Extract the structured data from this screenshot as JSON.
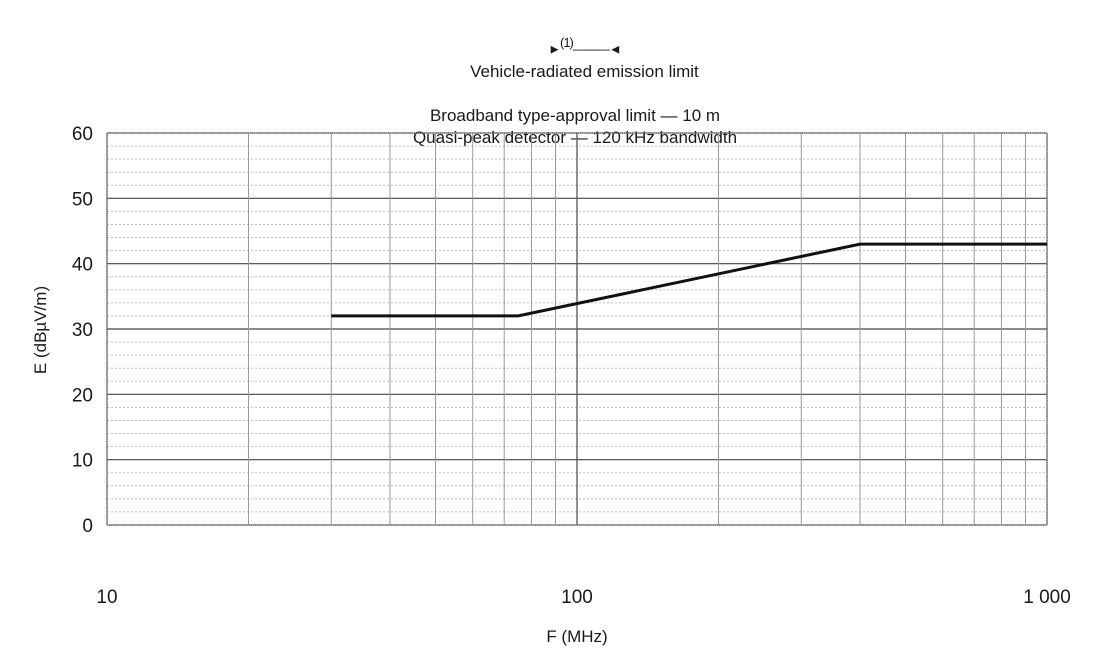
{
  "legend": {
    "marker_left": "►",
    "marker_sup": "(1)",
    "marker_right": "———◄",
    "text": "Vehicle-radiated emission limit"
  },
  "title_lines": [
    "Broadband type-approval limit — 10 m",
    "Quasi-peak detector — 120 kHz bandwidth"
  ],
  "chart_data": {
    "type": "line",
    "title": "Vehicle-radiated emission limit",
    "subtitle": [
      "Broadband type-approval limit — 10 m",
      "Quasi-peak detector — 120 kHz bandwidth"
    ],
    "xlabel": "F (MHz)",
    "ylabel": "E (dBµV/m)",
    "x_scale": "log",
    "xlim": [
      10,
      1000
    ],
    "ylim": [
      0,
      60
    ],
    "x_ticks": [
      10,
      100,
      1000
    ],
    "x_tick_labels": [
      "10",
      "100",
      "1 000"
    ],
    "y_ticks": [
      0,
      10,
      20,
      30,
      40,
      50,
      60
    ],
    "y_tick_labels": [
      "0",
      "10",
      "20",
      "30",
      "40",
      "50",
      "60"
    ],
    "grid": true,
    "series": [
      {
        "name": "Vehicle-radiated emission limit",
        "color": "#111111",
        "points": [
          {
            "x": 30,
            "y": 32
          },
          {
            "x": 75,
            "y": 32
          },
          {
            "x": 400,
            "y": 43
          },
          {
            "x": 1000,
            "y": 43
          }
        ]
      }
    ]
  }
}
